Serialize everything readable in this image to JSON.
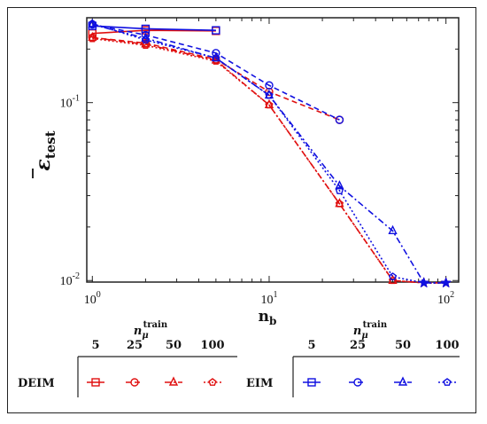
{
  "chart_data": {
    "type": "line",
    "xlabel": "n",
    "xlabel_sub": "b",
    "ylabel": "ε",
    "ylabel_sub": "test",
    "xscale": "log",
    "yscale": "log",
    "xlim": [
      0.93,
      118
    ],
    "ylim": [
      0.0098,
      0.3
    ],
    "grid": false,
    "x_ticks": [
      {
        "value": 1,
        "base": "10",
        "exp": "0"
      },
      {
        "value": 10,
        "base": "10",
        "exp": "1"
      },
      {
        "value": 100,
        "base": "10",
        "exp": "2"
      }
    ],
    "y_ticks": [
      {
        "value": 0.01,
        "base": "10",
        "exp": "-2"
      },
      {
        "value": 0.1,
        "base": "10",
        "exp": "-1"
      }
    ],
    "series": [
      {
        "method": "DEIM",
        "n_train": "5",
        "color": "#e01010",
        "dash": "solid",
        "marker": "square",
        "x": [
          1,
          2,
          5
        ],
        "y": [
          0.245,
          0.255,
          0.253
        ]
      },
      {
        "method": "DEIM",
        "n_train": "25",
        "color": "#e01010",
        "dash": "dashed",
        "marker": "circle",
        "x": [
          1,
          2,
          5,
          10,
          25
        ],
        "y": [
          0.232,
          0.216,
          0.175,
          0.115,
          0.08
        ]
      },
      {
        "method": "DEIM",
        "n_train": "50",
        "color": "#e01010",
        "dash": "dashdot",
        "marker": "triangle",
        "x": [
          1,
          2,
          5,
          10,
          25,
          50,
          75,
          100
        ],
        "y": [
          0.232,
          0.213,
          0.173,
          0.097,
          0.027,
          0.01,
          0.0097,
          0.0097
        ]
      },
      {
        "method": "DEIM",
        "n_train": "100",
        "color": "#e01010",
        "dash": "dotted",
        "marker": "pentagon",
        "x": [
          1,
          2,
          5,
          10,
          25,
          50,
          75,
          100
        ],
        "y": [
          0.229,
          0.21,
          0.171,
          0.097,
          0.027,
          0.01,
          0.0097,
          0.0097
        ]
      },
      {
        "method": "EIM",
        "n_train": "5",
        "color": "#1010e0",
        "dash": "solid",
        "marker": "square",
        "x": [
          1,
          2,
          5
        ],
        "y": [
          0.27,
          0.26,
          0.255
        ]
      },
      {
        "method": "EIM",
        "n_train": "25",
        "color": "#1010e0",
        "dash": "dashed",
        "marker": "circle",
        "x": [
          1,
          2,
          5,
          10,
          25
        ],
        "y": [
          0.275,
          0.24,
          0.19,
          0.125,
          0.08
        ]
      },
      {
        "method": "EIM",
        "n_train": "50",
        "color": "#1010e0",
        "dash": "dashdot",
        "marker": "triangle",
        "x": [
          1,
          2,
          5,
          10,
          25,
          50,
          75,
          100
        ],
        "y": [
          0.275,
          0.23,
          0.178,
          0.11,
          0.034,
          0.019,
          0.0097,
          0.0097
        ]
      },
      {
        "method": "EIM",
        "n_train": "100",
        "color": "#1010e0",
        "dash": "dotted",
        "marker": "pentagon",
        "x": [
          1,
          2,
          5,
          10,
          25,
          50,
          75,
          100
        ],
        "y": [
          0.278,
          0.225,
          0.178,
          0.11,
          0.032,
          0.0105,
          0.0097,
          0.0097
        ]
      }
    ]
  },
  "legend": {
    "header_main": "n",
    "header_sub": "μ",
    "header_sup": "train",
    "columns": [
      "5",
      "25",
      "50",
      "100"
    ],
    "rows": [
      {
        "label": "DEIM",
        "color": "#e01010"
      },
      {
        "label": "EIM",
        "color": "#1010e0"
      }
    ]
  }
}
